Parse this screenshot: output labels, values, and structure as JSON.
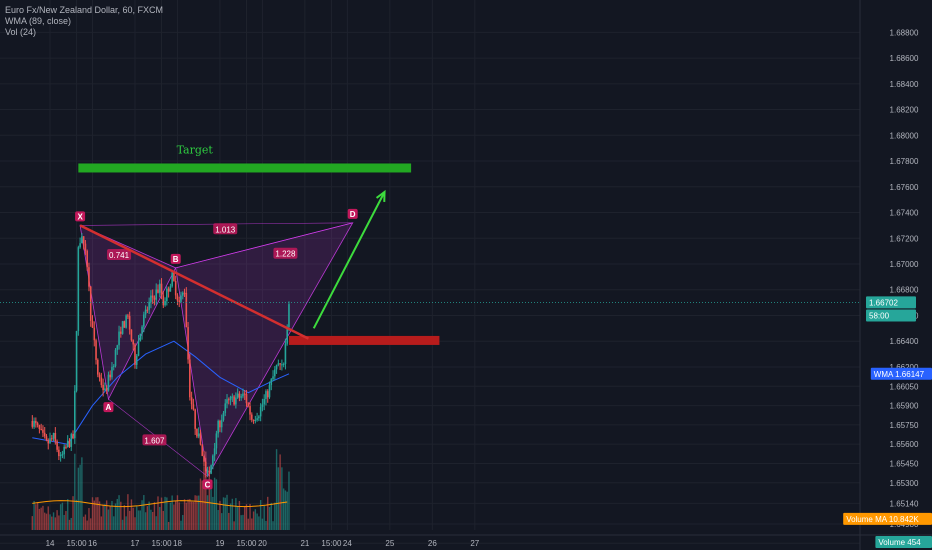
{
  "legend": {
    "symbol_line": "Euro Fx/New Zealand Dollar, 60, FXCM",
    "wma_line": "WMA (89, close)",
    "vol_line": "Vol (24)"
  },
  "colors": {
    "background": "#131722",
    "grid": "#1e222d",
    "up": "#26a69a",
    "down": "#ef5350",
    "wma": "#2962ff",
    "pattern": "#e040fb",
    "target": "#22a822",
    "support": "#b71c1c",
    "trendline": "#d32f2f",
    "arrow": "#4caf50",
    "volume_ma": "#ff9800"
  },
  "chart_data": {
    "type": "candlestick",
    "price_axis": {
      "ticks": [
        "1.68800",
        "1.68600",
        "1.68400",
        "1.68200",
        "1.68000",
        "1.67800",
        "1.67600",
        "1.67400",
        "1.67200",
        "1.67000",
        "1.66800",
        "1.66600",
        "1.66400",
        "1.66200",
        "1.66050",
        "1.65900",
        "1.65750",
        "1.65600",
        "1.65450",
        "1.65300",
        "1.65140",
        "1.64980",
        "1.64830"
      ],
      "tick_values": [
        1.688,
        1.686,
        1.684,
        1.682,
        1.68,
        1.678,
        1.676,
        1.674,
        1.672,
        1.67,
        1.668,
        1.666,
        1.664,
        1.662,
        1.6605,
        1.659,
        1.6575,
        1.656,
        1.6545,
        1.653,
        1.6514,
        1.6498,
        1.6483
      ]
    },
    "time_axis": {
      "labels": [
        "14",
        "15:00",
        "16",
        "17",
        "15:00",
        "18",
        "19",
        "15:00",
        "20",
        "21",
        "15:00",
        "24",
        "25",
        "26",
        "27"
      ],
      "label_hours": [
        -24,
        -9,
        0,
        24,
        39,
        48,
        72,
        87,
        96,
        120,
        135,
        144,
        168,
        192,
        216
      ]
    },
    "badges": [
      {
        "text": "1.66702",
        "value": 1.66702,
        "color": "#26a69a"
      },
      {
        "text": "58:00",
        "value": 1.666,
        "color": "#26a69a"
      },
      {
        "text": "WMA",
        "extra": "1.66147",
        "value": 1.66147,
        "color": "#2962ff"
      },
      {
        "text": "Volume MA",
        "extra": "10.842K",
        "value": 1.6502,
        "color": "#ff9800"
      },
      {
        "text": "Volume",
        "extra": "454",
        "value": 1.6484,
        "color": "#26a69a"
      }
    ],
    "key_closes": [
      {
        "h": -34,
        "v": 1.6578
      },
      {
        "h": -30,
        "v": 1.657
      },
      {
        "h": -26,
        "v": 1.656
      },
      {
        "h": -22,
        "v": 1.6565
      },
      {
        "h": -18,
        "v": 1.6548
      },
      {
        "h": -14,
        "v": 1.656
      },
      {
        "h": -11,
        "v": 1.6565
      },
      {
        "h": -10,
        "v": 1.6598
      },
      {
        "h": -9,
        "v": 1.665
      },
      {
        "h": -8,
        "v": 1.6712
      },
      {
        "h": -6,
        "v": 1.6725
      },
      {
        "h": -5,
        "v": 1.6712
      },
      {
        "h": -3,
        "v": 1.67
      },
      {
        "h": -1,
        "v": 1.666
      },
      {
        "h": 3,
        "v": 1.6615
      },
      {
        "h": 7,
        "v": 1.66
      },
      {
        "h": 12,
        "v": 1.6625
      },
      {
        "h": 16,
        "v": 1.665
      },
      {
        "h": 20,
        "v": 1.6658
      },
      {
        "h": 24,
        "v": 1.6625
      },
      {
        "h": 28,
        "v": 1.6655
      },
      {
        "h": 33,
        "v": 1.6672
      },
      {
        "h": 38,
        "v": 1.6682
      },
      {
        "h": 40,
        "v": 1.667
      },
      {
        "h": 45,
        "v": 1.669
      },
      {
        "h": 49,
        "v": 1.667
      },
      {
        "h": 52,
        "v": 1.668
      },
      {
        "h": 55,
        "v": 1.66
      },
      {
        "h": 58,
        "v": 1.6575
      },
      {
        "h": 61,
        "v": 1.656
      },
      {
        "h": 64,
        "v": 1.654
      },
      {
        "h": 66,
        "v": 1.6535
      },
      {
        "h": 70,
        "v": 1.657
      },
      {
        "h": 76,
        "v": 1.6592
      },
      {
        "h": 80,
        "v": 1.6595
      },
      {
        "h": 86,
        "v": 1.6598
      },
      {
        "h": 90,
        "v": 1.658
      },
      {
        "h": 94,
        "v": 1.6585
      },
      {
        "h": 99,
        "v": 1.66
      },
      {
        "h": 104,
        "v": 1.662
      },
      {
        "h": 108,
        "v": 1.6625
      },
      {
        "h": 110,
        "v": 1.665
      },
      {
        "h": 111,
        "v": 1.667
      }
    ],
    "wma": [
      {
        "h": -34,
        "v": 1.6565
      },
      {
        "h": -14,
        "v": 1.656
      },
      {
        "h": 0,
        "v": 1.659
      },
      {
        "h": 14,
        "v": 1.6612
      },
      {
        "h": 30,
        "v": 1.663
      },
      {
        "h": 46,
        "v": 1.664
      },
      {
        "h": 58,
        "v": 1.6628
      },
      {
        "h": 72,
        "v": 1.6612
      },
      {
        "h": 88,
        "v": 1.66
      },
      {
        "h": 100,
        "v": 1.6608
      },
      {
        "h": 111,
        "v": 1.66147
      }
    ],
    "harmonic_pattern": {
      "points": [
        {
          "label": "X",
          "h": -7,
          "v": 1.673
        },
        {
          "label": "A",
          "h": 9,
          "v": 1.6595
        },
        {
          "label": "B",
          "h": 47,
          "v": 1.6697
        },
        {
          "label": "C",
          "h": 65,
          "v": 1.6535
        },
        {
          "label": "D",
          "h": 147,
          "v": 1.6732
        }
      ],
      "ratios": [
        {
          "text": "0.741",
          "h": 15,
          "v": 1.6707
        },
        {
          "text": "1.013",
          "h": 75,
          "v": 1.6727
        },
        {
          "text": "1.228",
          "h": 109,
          "v": 1.6708
        },
        {
          "text": "1.607",
          "h": 35,
          "v": 1.6563
        }
      ]
    },
    "annotations": {
      "target_label": "Target",
      "target_zone": {
        "h0": -8,
        "h1": 180,
        "v": 1.6775
      },
      "support_zone": {
        "h0": 111,
        "h1": 196,
        "v": 1.6641
      },
      "trendline": {
        "h0": -7,
        "v0": 1.673,
        "h1": 122,
        "v1": 1.6642
      },
      "arrow": {
        "h0": 125,
        "v0": 1.665,
        "h1": 165,
        "v1": 1.6756
      }
    },
    "volume_ma_level": 0.3
  }
}
